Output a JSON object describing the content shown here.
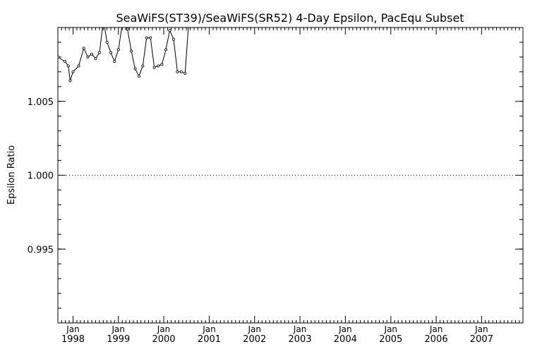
{
  "chart_data": {
    "type": "line",
    "title": "SeaWiFS(ST39)/SeaWiFS(SR52) 4-Day Epsilon, PacEqu Subset",
    "xlabel": "",
    "ylabel": "Epsilon Ratio",
    "xlim": [
      "1997-09-01",
      "2007-11-30"
    ],
    "ylim": [
      0.99,
      1.01
    ],
    "y_ticks": [
      {
        "value": 0.995,
        "label": "0.995"
      },
      {
        "value": 1.0,
        "label": "1.000"
      },
      {
        "value": 1.005,
        "label": "1.005"
      }
    ],
    "x_ticks": [
      {
        "date": "1998-01-01",
        "month": "Jan",
        "year": "1998"
      },
      {
        "date": "1999-01-01",
        "month": "Jan",
        "year": "1999"
      },
      {
        "date": "2000-01-01",
        "month": "Jan",
        "year": "2000"
      },
      {
        "date": "2001-01-01",
        "month": "Jan",
        "year": "2001"
      },
      {
        "date": "2002-01-01",
        "month": "Jan",
        "year": "2002"
      },
      {
        "date": "2003-01-01",
        "month": "Jan",
        "year": "2003"
      },
      {
        "date": "2004-01-01",
        "month": "Jan",
        "year": "2004"
      },
      {
        "date": "2005-01-01",
        "month": "Jan",
        "year": "2005"
      },
      {
        "date": "2006-01-01",
        "month": "Jan",
        "year": "2006"
      },
      {
        "date": "2007-01-01",
        "month": "Jan",
        "year": "2007"
      }
    ],
    "reference_line": {
      "value": 1.0,
      "style": "dotted"
    },
    "grid": false,
    "series": [
      {
        "name": "",
        "x": [
          "1997-09-01",
          "1997-10-28",
          "1997-11-24",
          "1997-12-09",
          "1998-01-01",
          "1998-02-15",
          "1998-03-29",
          "1998-04-30",
          "1998-05-31",
          "1998-07-02",
          "1998-08-02",
          "1998-09-02",
          "1998-10-02",
          "1998-11-01",
          "1998-12-01",
          "1999-01-01",
          "1999-02-01",
          "1999-03-15",
          "1999-04-15",
          "1999-05-16",
          "1999-06-16",
          "1999-07-16",
          "1999-08-16",
          "1999-09-16",
          "1999-10-17",
          "1999-11-17",
          "1999-12-17",
          "2000-01-18",
          "2000-02-18",
          "2000-03-20",
          "2000-04-20",
          "2000-05-21",
          "2000-06-21",
          "2000-07-21",
          "2000-08-21"
        ],
        "y": [
          1.008,
          1.0077,
          1.0074,
          1.0064,
          1.007,
          1.0074,
          1.0086,
          1.008,
          1.0082,
          1.0079,
          1.0083,
          1.0105,
          1.009,
          1.0083,
          1.0077,
          1.0085,
          1.0102,
          1.0099,
          1.0084,
          1.0072,
          1.0067,
          1.0074,
          1.0093,
          1.0093,
          1.0073,
          1.0074,
          1.0075,
          1.0085,
          1.0098,
          1.0092,
          1.007,
          1.007,
          1.0069,
          1.0105,
          1.0112
        ]
      }
    ]
  }
}
